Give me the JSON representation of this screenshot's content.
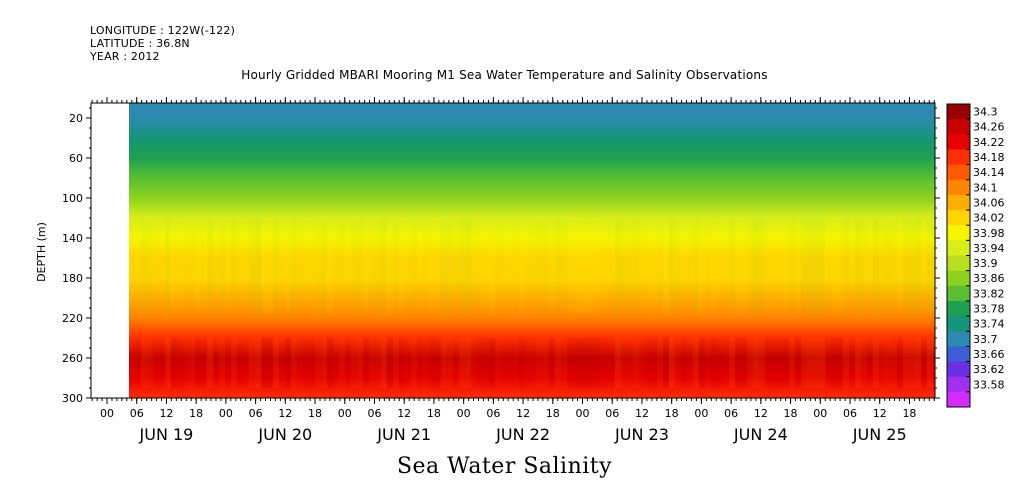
{
  "header": {
    "longitude": "LONGITUDE : 122W(-122)",
    "latitude": "LATITUDE : 36.8N",
    "year": "YEAR : 2012"
  },
  "chart_data": {
    "type": "heatmap",
    "title": "Hourly Gridded MBARI Mooring M1 Sea Water Temperature and Salinity Observations",
    "bottom_title": "Sea Water Salinity",
    "ylabel": "DEPTH (m)",
    "ylim": [
      300,
      0
    ],
    "y_ticks": [
      "20",
      "60",
      "100",
      "140",
      "180",
      "220",
      "260",
      "300"
    ],
    "x_hour_ticks": [
      "00",
      "06",
      "12",
      "18",
      "00",
      "06",
      "12",
      "18",
      "00",
      "06",
      "12",
      "18",
      "00",
      "06",
      "12",
      "18",
      "00",
      "06",
      "12",
      "18",
      "00",
      "06",
      "12",
      "18",
      "00",
      "06",
      "12",
      "18"
    ],
    "x_day_labels": [
      "JUN 19",
      "JUN 20",
      "JUN 21",
      "JUN 22",
      "JUN 23",
      "JUN 24",
      "JUN 25"
    ],
    "colorbar_labels": [
      "34.3",
      "34.26",
      "34.22",
      "34.18",
      "34.14",
      "34.1",
      "34.06",
      "34.02",
      "33.98",
      "33.94",
      "33.9",
      "33.86",
      "33.82",
      "33.78",
      "33.74",
      "33.7",
      "33.66",
      "33.62",
      "33.58"
    ],
    "colorbar_colors": [
      "#9a0000",
      "#c80000",
      "#e60000",
      "#ff2e00",
      "#ff5a00",
      "#ff8400",
      "#ffad00",
      "#ffd500",
      "#f5f500",
      "#d8ee1a",
      "#b8e01e",
      "#8cd21e",
      "#58c032",
      "#1ea050",
      "#149678",
      "#2c8ab0",
      "#3b5fd6",
      "#6a2fe0",
      "#a030f0",
      "#d22cff"
    ],
    "depth_profile": [
      {
        "depth": 5,
        "value": 33.72
      },
      {
        "depth": 20,
        "value": 33.74
      },
      {
        "depth": 40,
        "value": 33.78
      },
      {
        "depth": 60,
        "value": 33.82
      },
      {
        "depth": 80,
        "value": 33.86
      },
      {
        "depth": 100,
        "value": 33.9
      },
      {
        "depth": 120,
        "value": 33.95
      },
      {
        "depth": 140,
        "value": 34.0
      },
      {
        "depth": 160,
        "value": 34.03
      },
      {
        "depth": 180,
        "value": 34.04
      },
      {
        "depth": 200,
        "value": 34.06
      },
      {
        "depth": 220,
        "value": 34.12
      },
      {
        "depth": 240,
        "value": 34.2
      },
      {
        "depth": 260,
        "value": 34.26
      },
      {
        "depth": 280,
        "value": 34.22
      },
      {
        "depth": 300,
        "value": 34.2
      }
    ]
  }
}
